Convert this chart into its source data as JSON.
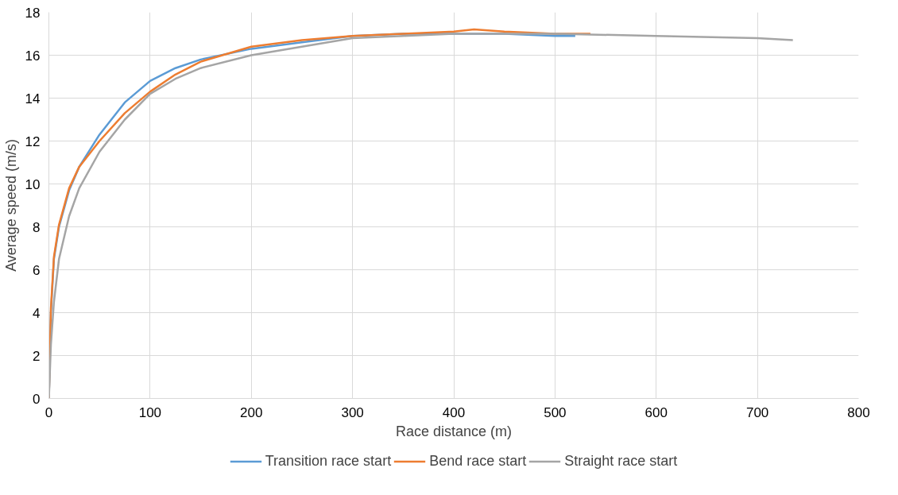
{
  "chart_data": {
    "type": "line",
    "xlabel": "Race distance (m)",
    "ylabel": "Average speed (m/s)",
    "xlim": [
      0,
      800
    ],
    "xticks": [
      0,
      100,
      200,
      300,
      400,
      500,
      600,
      700,
      800
    ],
    "ylim": [
      0,
      18
    ],
    "yticks": [
      0,
      2,
      4,
      6,
      8,
      10,
      12,
      14,
      16,
      18
    ],
    "grid": true,
    "legend": "bottom",
    "marker": "none",
    "line_style": "solid",
    "series": [
      {
        "name": "Transition race start",
        "color": "#5b9bd5",
        "x": [
          0,
          2,
          5,
          10,
          20,
          30,
          50,
          75,
          100,
          125,
          150,
          200,
          250,
          300,
          350,
          400,
          450,
          500,
          520
        ],
        "values": [
          0,
          4,
          6.5,
          8,
          9.7,
          10.8,
          12.3,
          13.8,
          14.8,
          15.4,
          15.8,
          16.3,
          16.6,
          16.9,
          17.0,
          17.0,
          17.0,
          16.9,
          16.9
        ]
      },
      {
        "name": "Bend race start",
        "color": "#ed7d31",
        "x": [
          0,
          2,
          5,
          10,
          20,
          30,
          50,
          75,
          100,
          125,
          150,
          200,
          250,
          300,
          350,
          400,
          420,
          450,
          500,
          535
        ],
        "values": [
          0,
          4.2,
          6.6,
          8.1,
          9.8,
          10.8,
          12.0,
          13.3,
          14.3,
          15.1,
          15.7,
          16.4,
          16.7,
          16.9,
          17.0,
          17.1,
          17.2,
          17.1,
          17.0,
          17.0
        ]
      },
      {
        "name": "Straight race start",
        "color": "#a5a5a5",
        "x": [
          0,
          2,
          5,
          10,
          20,
          30,
          50,
          75,
          100,
          125,
          150,
          200,
          250,
          300,
          350,
          400,
          450,
          500,
          600,
          700,
          735
        ],
        "values": [
          0,
          2.5,
          4.5,
          6.5,
          8.5,
          9.8,
          11.5,
          13.0,
          14.2,
          14.9,
          15.4,
          16.0,
          16.4,
          16.8,
          16.9,
          17.0,
          17.0,
          17.0,
          16.9,
          16.8,
          16.7
        ]
      }
    ]
  }
}
